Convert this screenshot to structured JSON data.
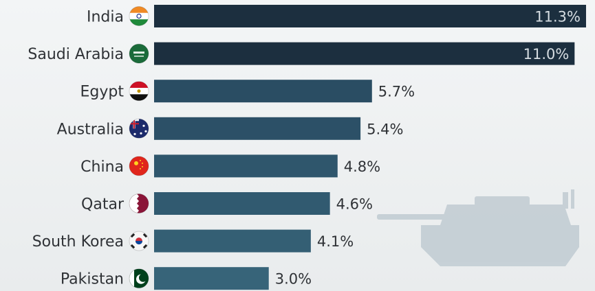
{
  "chart_data": {
    "type": "bar",
    "orientation": "horizontal",
    "categories": [
      "India",
      "Saudi Arabia",
      "Egypt",
      "Australia",
      "China",
      "Qatar",
      "South Korea",
      "Pakistan"
    ],
    "values": [
      11.3,
      11.0,
      5.7,
      5.4,
      4.8,
      4.6,
      4.1,
      3.0
    ],
    "value_labels": [
      "11.3%",
      "11.0%",
      "5.7%",
      "5.4%",
      "4.8%",
      "4.6%",
      "4.1%",
      "3.0%"
    ],
    "flag_icons": [
      "india-flag-icon",
      "saudi-arabia-flag-icon",
      "egypt-flag-icon",
      "australia-flag-icon",
      "china-flag-icon",
      "qatar-flag-icon",
      "south-korea-flag-icon",
      "pakistan-flag-icon"
    ],
    "bar_colors": [
      "#1c2f3f",
      "#1c2f3f",
      "#2a4d63",
      "#2c5067",
      "#2f566c",
      "#315a70",
      "#345f74",
      "#376479"
    ],
    "value_label_colors": [
      "#d6dde2",
      "#d6dde2",
      "#2f3236",
      "#2f3236",
      "#2f3236",
      "#2f3236",
      "#2f3236",
      "#2f3236"
    ],
    "xlim": [
      0,
      11.3
    ],
    "grid": false,
    "legend": "none",
    "decoration": "tank-silhouette-icon"
  }
}
